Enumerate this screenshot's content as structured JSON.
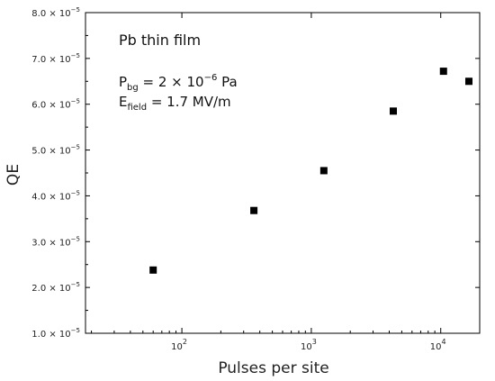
{
  "chart_data": {
    "type": "scatter",
    "xlabel": "Pulses per site",
    "ylabel": "QE",
    "xscale": "log",
    "xlim": [
      18,
      20000
    ],
    "ylim": [
      1e-05,
      8e-05
    ],
    "x_ticks": [
      {
        "value": 100,
        "base": "10",
        "exp": "2"
      },
      {
        "value": 1000,
        "base": "10",
        "exp": "3"
      },
      {
        "value": 10000,
        "base": "10",
        "exp": "4"
      }
    ],
    "y_ticks": [
      {
        "value": 1e-05,
        "mantissa": "1.0 × 10",
        "exp": "−5"
      },
      {
        "value": 2e-05,
        "mantissa": "2.0 × 10",
        "exp": "−5"
      },
      {
        "value": 3e-05,
        "mantissa": "3.0 × 10",
        "exp": "−5"
      },
      {
        "value": 4e-05,
        "mantissa": "4.0 × 10",
        "exp": "−5"
      },
      {
        "value": 5e-05,
        "mantissa": "5.0 × 10",
        "exp": "−5"
      },
      {
        "value": 6e-05,
        "mantissa": "6.0 × 10",
        "exp": "−5"
      },
      {
        "value": 7e-05,
        "mantissa": "7.0 × 10",
        "exp": "−5"
      },
      {
        "value": 8e-05,
        "mantissa": "8.0 × 10",
        "exp": "−5"
      }
    ],
    "series": [
      {
        "marker": "square",
        "color": "#000000",
        "points": [
          {
            "x": 60,
            "y": 2.38e-05
          },
          {
            "x": 360,
            "y": 3.68e-05
          },
          {
            "x": 1250,
            "y": 4.55e-05
          },
          {
            "x": 4300,
            "y": 5.85e-05
          },
          {
            "x": 10500,
            "y": 6.72e-05
          },
          {
            "x": 16500,
            "y": 6.5e-05
          }
        ]
      }
    ],
    "annotations": {
      "material": "Pb thin film",
      "pressure": {
        "prefix": "P",
        "sub": "bg",
        "value": " = 2 × 10",
        "exp": "−6",
        "unit": " Pa"
      },
      "field": {
        "prefix": "E",
        "sub": "field",
        "value": " = 1.7 MV/m"
      }
    },
    "grid": false,
    "legend": "none"
  }
}
